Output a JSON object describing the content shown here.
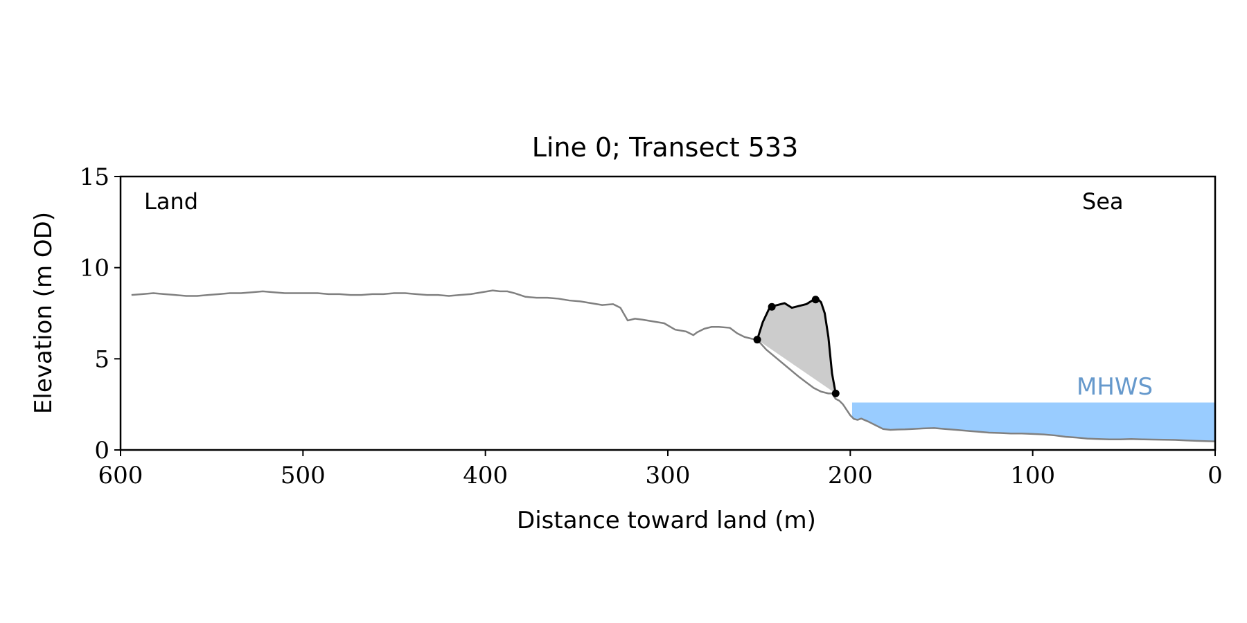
{
  "chart_data": {
    "type": "line",
    "title": "Line 0; Transect 533",
    "xlabel": "Distance toward land (m)",
    "ylabel": "Elevation (m OD)",
    "xlim": [
      600,
      0
    ],
    "ylim": [
      0,
      15
    ],
    "x_reversed": true,
    "xticks": [
      600,
      500,
      400,
      300,
      200,
      100,
      0
    ],
    "xtick_labels": [
      "600",
      "500",
      "400",
      "300",
      "200",
      "100",
      "0"
    ],
    "yticks": [
      0,
      5,
      10,
      15
    ],
    "ytick_labels": [
      "0",
      "5",
      "10",
      "15"
    ],
    "grid": false,
    "annotations": {
      "left": "Land",
      "right": "Sea",
      "water": "MHWS"
    },
    "colors": {
      "profile": "#808080",
      "feature": "#000000",
      "fill": "#cccccc",
      "water": "#99ccff",
      "water_label": "#6699cc"
    },
    "mhws": {
      "elevation": 2.6,
      "x_from": 199,
      "x_to": 0
    },
    "profile": {
      "x": [
        594,
        588,
        582,
        576,
        570,
        564,
        558,
        552,
        546,
        540,
        534,
        528,
        522,
        516,
        510,
        504,
        498,
        492,
        486,
        480,
        474,
        468,
        462,
        456,
        450,
        444,
        438,
        432,
        426,
        420,
        414,
        408,
        402,
        396,
        392,
        388,
        384,
        378,
        372,
        366,
        360,
        354,
        348,
        342,
        336,
        330,
        326,
        322,
        318,
        314,
        308,
        302,
        296,
        290,
        286,
        284,
        280,
        276,
        272,
        266,
        262,
        258,
        254,
        251,
        246,
        240,
        234,
        228,
        224,
        220,
        216,
        212,
        210,
        208,
        206,
        204,
        202,
        200,
        198,
        196,
        194,
        190,
        186,
        182,
        178,
        174,
        170,
        166,
        160,
        154,
        148,
        142,
        136,
        130,
        124,
        118,
        112,
        106,
        100,
        94,
        88,
        82,
        76,
        70,
        64,
        58,
        52,
        46,
        40,
        34,
        28,
        22,
        16,
        10,
        4,
        0
      ],
      "y": [
        8.5,
        8.55,
        8.6,
        8.55,
        8.5,
        8.45,
        8.45,
        8.5,
        8.55,
        8.6,
        8.6,
        8.65,
        8.7,
        8.65,
        8.6,
        8.6,
        8.6,
        8.6,
        8.55,
        8.55,
        8.5,
        8.5,
        8.55,
        8.55,
        8.6,
        8.6,
        8.55,
        8.5,
        8.5,
        8.45,
        8.5,
        8.55,
        8.65,
        8.75,
        8.7,
        8.7,
        8.6,
        8.4,
        8.35,
        8.35,
        8.3,
        8.2,
        8.15,
        8.05,
        7.95,
        8.0,
        7.8,
        7.1,
        7.2,
        7.15,
        7.05,
        6.95,
        6.6,
        6.5,
        6.3,
        6.45,
        6.65,
        6.75,
        6.75,
        6.7,
        6.4,
        6.2,
        6.1,
        6.05,
        5.5,
        5.0,
        4.5,
        4.0,
        3.7,
        3.4,
        3.2,
        3.1,
        3.1,
        2.8,
        2.7,
        2.5,
        2.2,
        1.9,
        1.7,
        1.65,
        1.72,
        1.55,
        1.35,
        1.15,
        1.1,
        1.12,
        1.13,
        1.15,
        1.18,
        1.2,
        1.15,
        1.1,
        1.05,
        1.0,
        0.95,
        0.93,
        0.9,
        0.9,
        0.88,
        0.85,
        0.8,
        0.72,
        0.68,
        0.62,
        0.6,
        0.58,
        0.58,
        0.6,
        0.58,
        0.57,
        0.56,
        0.55,
        0.52,
        0.5,
        0.48,
        0.47
      ]
    },
    "feature": {
      "x": [
        251,
        248,
        244,
        240,
        236,
        232,
        228,
        224,
        220,
        218,
        216,
        214,
        212,
        210,
        208
      ],
      "y": [
        6.05,
        7.0,
        7.85,
        7.95,
        8.05,
        7.8,
        7.9,
        8.0,
        8.25,
        8.3,
        8.1,
        7.5,
        6.2,
        4.2,
        3.1
      ]
    },
    "feature_markers": {
      "x": [
        251,
        243,
        219,
        208
      ],
      "y": [
        6.05,
        7.85,
        8.25,
        3.1
      ]
    }
  }
}
